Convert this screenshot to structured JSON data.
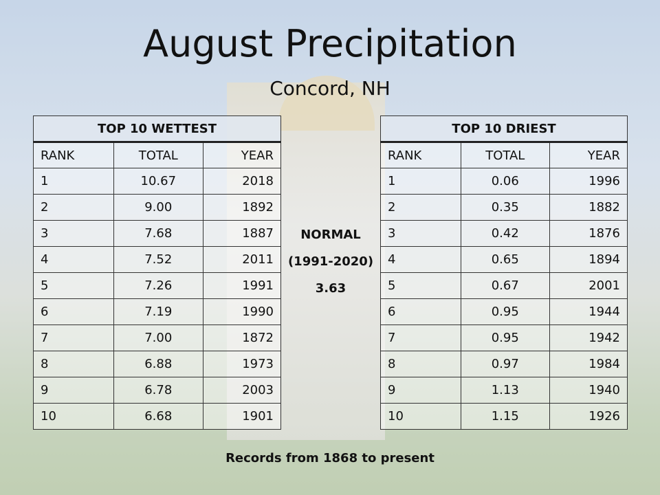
{
  "title": "August Precipitation",
  "subtitle": "Concord, NH",
  "wettest": {
    "title": "TOP 10 WETTEST",
    "headers": [
      "RANK",
      "TOTAL",
      "YEAR"
    ],
    "rows": [
      [
        "1",
        "10.67",
        "2018"
      ],
      [
        "2",
        "9.00",
        "1892"
      ],
      [
        "3",
        "7.68",
        "1887"
      ],
      [
        "4",
        "7.52",
        "2011"
      ],
      [
        "5",
        "7.26",
        "1991"
      ],
      [
        "6",
        "7.19",
        "1990"
      ],
      [
        "7",
        "7.00",
        "1872"
      ],
      [
        "8",
        "6.88",
        "1973"
      ],
      [
        "9",
        "6.78",
        "2003"
      ],
      [
        "10",
        "6.68",
        "1901"
      ]
    ]
  },
  "driest": {
    "title": "TOP 10 DRIEST",
    "headers": [
      "RANK",
      "TOTAL",
      "YEAR"
    ],
    "rows": [
      [
        "1",
        "0.06",
        "1996"
      ],
      [
        "2",
        "0.35",
        "1882"
      ],
      [
        "3",
        "0.42",
        "1876"
      ],
      [
        "4",
        "0.65",
        "1894"
      ],
      [
        "5",
        "0.67",
        "2001"
      ],
      [
        "6",
        "0.95",
        "1944"
      ],
      [
        "7",
        "0.95",
        "1942"
      ],
      [
        "8",
        "0.97",
        "1984"
      ],
      [
        "9",
        "1.13",
        "1940"
      ],
      [
        "10",
        "1.15",
        "1926"
      ]
    ]
  },
  "normal": {
    "label": "NORMAL",
    "period": "(1991-2020)",
    "value": "3.63"
  },
  "footnote": "Records from 1868 to present"
}
